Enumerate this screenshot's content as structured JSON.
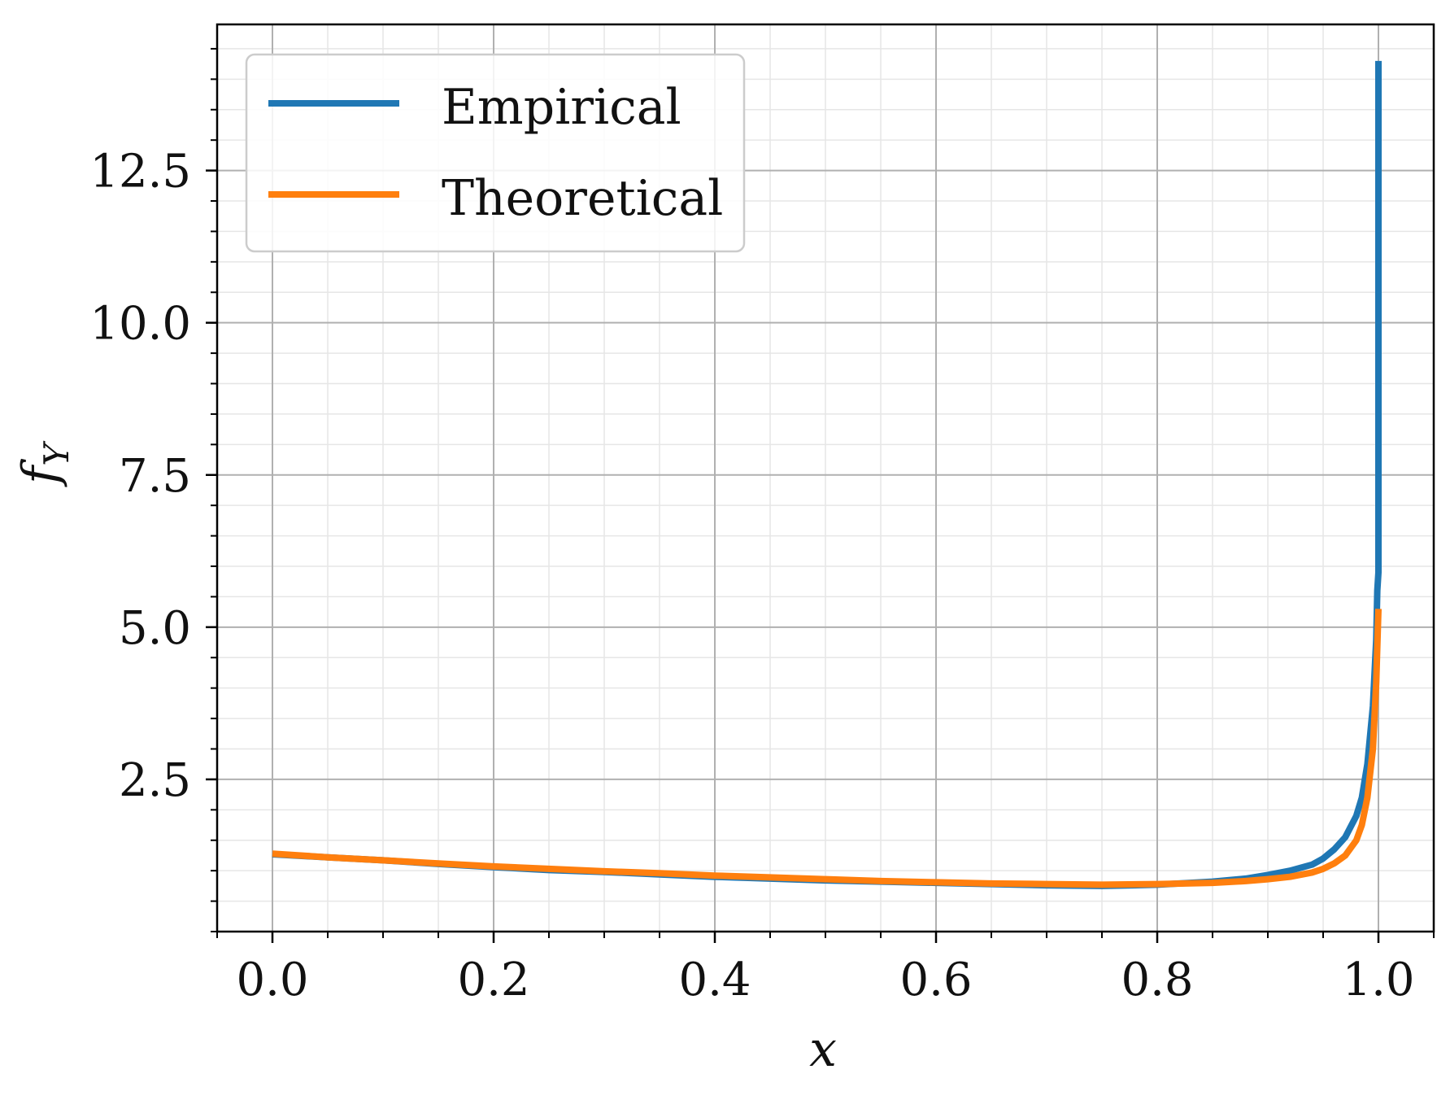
{
  "chart_data": {
    "type": "line",
    "xlabel": "x",
    "ylabel": "f",
    "ylabel_sub": "Y",
    "xlim": [
      -0.05,
      1.05
    ],
    "ylim": [
      0.0,
      14.9
    ],
    "x_ticks": [
      0.0,
      0.2,
      0.4,
      0.6,
      0.8,
      1.0
    ],
    "x_tick_labels": [
      "0.0",
      "0.2",
      "0.4",
      "0.6",
      "0.8",
      "1.0"
    ],
    "y_ticks": [
      2.5,
      5.0,
      7.5,
      10.0,
      12.5
    ],
    "y_tick_labels": [
      "2.5",
      "5.0",
      "7.5",
      "10.0",
      "12.5"
    ],
    "x_minor_step": 0.05,
    "y_minor_step": 0.5,
    "grid": true,
    "legend_position": "top-left",
    "series": [
      {
        "name": "Empirical",
        "color": "#1f77b4",
        "x": [
          0.0,
          0.05,
          0.1,
          0.15,
          0.2,
          0.25,
          0.3,
          0.35,
          0.4,
          0.45,
          0.5,
          0.55,
          0.6,
          0.65,
          0.7,
          0.75,
          0.8,
          0.85,
          0.88,
          0.9,
          0.92,
          0.94,
          0.95,
          0.96,
          0.97,
          0.98,
          0.985,
          0.99,
          0.995,
          0.998,
          0.999,
          1.0,
          1.0
        ],
        "y": [
          1.27,
          1.22,
          1.17,
          1.11,
          1.06,
          1.01,
          0.98,
          0.94,
          0.9,
          0.87,
          0.84,
          0.82,
          0.8,
          0.78,
          0.76,
          0.75,
          0.77,
          0.82,
          0.87,
          0.93,
          1.0,
          1.1,
          1.2,
          1.35,
          1.55,
          1.9,
          2.2,
          2.75,
          3.7,
          4.8,
          5.6,
          5.9,
          14.3
        ]
      },
      {
        "name": "Theoretical",
        "color": "#ff7f0e",
        "x": [
          0.0,
          0.05,
          0.1,
          0.15,
          0.2,
          0.25,
          0.3,
          0.35,
          0.4,
          0.45,
          0.5,
          0.55,
          0.6,
          0.65,
          0.7,
          0.75,
          0.8,
          0.85,
          0.88,
          0.9,
          0.92,
          0.94,
          0.95,
          0.96,
          0.97,
          0.98,
          0.985,
          0.99,
          0.995,
          0.998,
          1.0
        ],
        "y": [
          1.28,
          1.22,
          1.17,
          1.12,
          1.07,
          1.03,
          0.99,
          0.96,
          0.92,
          0.89,
          0.86,
          0.83,
          0.81,
          0.79,
          0.78,
          0.77,
          0.78,
          0.8,
          0.83,
          0.86,
          0.9,
          0.97,
          1.03,
          1.12,
          1.25,
          1.5,
          1.75,
          2.2,
          3.0,
          4.1,
          5.3
        ]
      }
    ]
  }
}
